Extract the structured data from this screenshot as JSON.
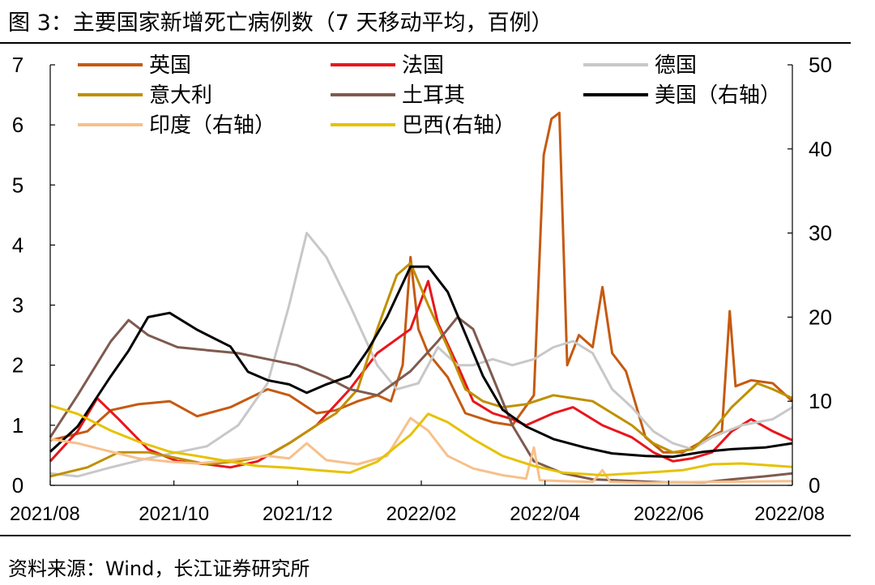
{
  "figure": {
    "title": "图 3：主要国家新增死亡病例数（7 天移动平均，百例）",
    "source": "资料来源：Wind，长江证券研究所"
  },
  "chart_data": {
    "type": "line",
    "x_ticks": [
      "2021/08",
      "2021/10",
      "2021/12",
      "2022/02",
      "2022/04",
      "2022/06",
      "2022/08"
    ],
    "x_range": [
      "2021-08-01",
      "2022-08-15"
    ],
    "y_left": {
      "range": [
        0,
        7
      ],
      "ticks": [
        0,
        1,
        2,
        3,
        4,
        5,
        6,
        7
      ]
    },
    "y_right": {
      "range": [
        0,
        50
      ],
      "ticks": [
        0,
        10,
        20,
        30,
        40,
        50
      ]
    },
    "legend_position": "top",
    "series": [
      {
        "name": "英国",
        "axis": "left",
        "color": "#C55A11",
        "width": 3,
        "points": [
          [
            "2021-08-01",
            0.75
          ],
          [
            "2021-08-20",
            0.9
          ],
          [
            "2021-09-01",
            1.25
          ],
          [
            "2021-09-15",
            1.35
          ],
          [
            "2021-10-01",
            1.4
          ],
          [
            "2021-10-15",
            1.15
          ],
          [
            "2021-11-01",
            1.3
          ],
          [
            "2021-11-20",
            1.6
          ],
          [
            "2021-12-01",
            1.5
          ],
          [
            "2021-12-15",
            1.2
          ],
          [
            "2021-12-25",
            1.25
          ],
          [
            "2022-01-05",
            1.4
          ],
          [
            "2022-01-15",
            1.5
          ],
          [
            "2022-01-22",
            1.4
          ],
          [
            "2022-01-28",
            2.0
          ],
          [
            "2022-02-01",
            3.8
          ],
          [
            "2022-02-05",
            2.6
          ],
          [
            "2022-02-10",
            2.2
          ],
          [
            "2022-02-20",
            1.8
          ],
          [
            "2022-03-01",
            1.2
          ],
          [
            "2022-03-15",
            1.05
          ],
          [
            "2022-03-25",
            1.0
          ],
          [
            "2022-04-05",
            1.5
          ],
          [
            "2022-04-10",
            5.5
          ],
          [
            "2022-04-14",
            6.1
          ],
          [
            "2022-04-18",
            6.2
          ],
          [
            "2022-04-22",
            2.0
          ],
          [
            "2022-04-28",
            2.5
          ],
          [
            "2022-05-05",
            2.3
          ],
          [
            "2022-05-10",
            3.3
          ],
          [
            "2022-05-15",
            2.2
          ],
          [
            "2022-05-22",
            1.9
          ],
          [
            "2022-06-01",
            0.8
          ],
          [
            "2022-06-10",
            0.55
          ],
          [
            "2022-06-20",
            0.55
          ],
          [
            "2022-07-01",
            0.75
          ],
          [
            "2022-07-10",
            0.9
          ],
          [
            "2022-07-14",
            2.9
          ],
          [
            "2022-07-17",
            1.65
          ],
          [
            "2022-07-25",
            1.75
          ],
          [
            "2022-08-05",
            1.7
          ],
          [
            "2022-08-15",
            1.4
          ]
        ]
      },
      {
        "name": "法国",
        "axis": "left",
        "color": "#E8161C",
        "width": 3,
        "points": [
          [
            "2021-08-01",
            0.4
          ],
          [
            "2021-08-15",
            0.9
          ],
          [
            "2021-08-25",
            1.45
          ],
          [
            "2021-09-05",
            1.1
          ],
          [
            "2021-09-20",
            0.6
          ],
          [
            "2021-10-05",
            0.4
          ],
          [
            "2021-10-20",
            0.35
          ],
          [
            "2021-11-01",
            0.3
          ],
          [
            "2021-11-15",
            0.4
          ],
          [
            "2021-12-01",
            0.7
          ],
          [
            "2021-12-15",
            1.0
          ],
          [
            "2022-01-01",
            1.6
          ],
          [
            "2022-01-15",
            2.2
          ],
          [
            "2022-02-01",
            2.6
          ],
          [
            "2022-02-10",
            3.4
          ],
          [
            "2022-02-15",
            2.7
          ],
          [
            "2022-02-25",
            2.0
          ],
          [
            "2022-03-05",
            1.4
          ],
          [
            "2022-03-15",
            1.2
          ],
          [
            "2022-03-25",
            1.1
          ],
          [
            "2022-04-01",
            1.0
          ],
          [
            "2022-04-15",
            1.2
          ],
          [
            "2022-04-25",
            1.3
          ],
          [
            "2022-05-10",
            1.0
          ],
          [
            "2022-05-25",
            0.8
          ],
          [
            "2022-06-05",
            0.55
          ],
          [
            "2022-06-15",
            0.4
          ],
          [
            "2022-06-25",
            0.45
          ],
          [
            "2022-07-05",
            0.55
          ],
          [
            "2022-07-15",
            0.9
          ],
          [
            "2022-07-25",
            1.1
          ],
          [
            "2022-08-05",
            0.9
          ],
          [
            "2022-08-15",
            0.75
          ]
        ]
      },
      {
        "name": "德国",
        "axis": "left",
        "color": "#C8C8C8",
        "width": 3,
        "points": [
          [
            "2021-08-01",
            0.2
          ],
          [
            "2021-08-15",
            0.15
          ],
          [
            "2021-09-01",
            0.3
          ],
          [
            "2021-09-20",
            0.45
          ],
          [
            "2021-10-05",
            0.55
          ],
          [
            "2021-10-20",
            0.65
          ],
          [
            "2021-11-05",
            1.0
          ],
          [
            "2021-11-20",
            1.7
          ],
          [
            "2021-12-01",
            3.0
          ],
          [
            "2021-12-10",
            4.2
          ],
          [
            "2021-12-20",
            3.8
          ],
          [
            "2022-01-01",
            3.0
          ],
          [
            "2022-01-15",
            2.0
          ],
          [
            "2022-01-25",
            1.6
          ],
          [
            "2022-02-05",
            1.7
          ],
          [
            "2022-02-15",
            2.3
          ],
          [
            "2022-02-25",
            2.0
          ],
          [
            "2022-03-05",
            2.0
          ],
          [
            "2022-03-15",
            2.1
          ],
          [
            "2022-03-25",
            2.0
          ],
          [
            "2022-04-05",
            2.1
          ],
          [
            "2022-04-15",
            2.3
          ],
          [
            "2022-04-25",
            2.4
          ],
          [
            "2022-05-05",
            2.2
          ],
          [
            "2022-05-15",
            1.6
          ],
          [
            "2022-05-25",
            1.3
          ],
          [
            "2022-06-05",
            0.9
          ],
          [
            "2022-06-15",
            0.7
          ],
          [
            "2022-06-25",
            0.6
          ],
          [
            "2022-07-05",
            0.8
          ],
          [
            "2022-07-20",
            1.0
          ],
          [
            "2022-08-05",
            1.1
          ],
          [
            "2022-08-15",
            1.3
          ]
        ]
      },
      {
        "name": "意大利",
        "axis": "left",
        "color": "#BF9000",
        "width": 3,
        "points": [
          [
            "2021-08-01",
            0.15
          ],
          [
            "2021-08-20",
            0.3
          ],
          [
            "2021-09-05",
            0.55
          ],
          [
            "2021-09-20",
            0.55
          ],
          [
            "2021-10-05",
            0.45
          ],
          [
            "2021-10-20",
            0.35
          ],
          [
            "2021-11-05",
            0.4
          ],
          [
            "2021-11-20",
            0.5
          ],
          [
            "2021-12-01",
            0.7
          ],
          [
            "2021-12-15",
            1.0
          ],
          [
            "2021-12-25",
            1.2
          ],
          [
            "2022-01-05",
            1.6
          ],
          [
            "2022-01-15",
            2.6
          ],
          [
            "2022-01-25",
            3.5
          ],
          [
            "2022-02-01",
            3.7
          ],
          [
            "2022-02-10",
            3.0
          ],
          [
            "2022-02-20",
            2.3
          ],
          [
            "2022-03-01",
            1.6
          ],
          [
            "2022-03-10",
            1.4
          ],
          [
            "2022-03-20",
            1.3
          ],
          [
            "2022-04-01",
            1.35
          ],
          [
            "2022-04-15",
            1.5
          ],
          [
            "2022-04-25",
            1.45
          ],
          [
            "2022-05-05",
            1.4
          ],
          [
            "2022-05-15",
            1.2
          ],
          [
            "2022-05-25",
            1.0
          ],
          [
            "2022-06-05",
            0.7
          ],
          [
            "2022-06-15",
            0.55
          ],
          [
            "2022-06-25",
            0.6
          ],
          [
            "2022-07-05",
            0.9
          ],
          [
            "2022-07-15",
            1.3
          ],
          [
            "2022-07-28",
            1.7
          ],
          [
            "2022-08-05",
            1.6
          ],
          [
            "2022-08-15",
            1.45
          ]
        ]
      },
      {
        "name": "土耳其",
        "axis": "left",
        "color": "#7F5A4F",
        "width": 3,
        "points": [
          [
            "2021-08-01",
            0.8
          ],
          [
            "2021-08-15",
            1.5
          ],
          [
            "2021-09-01",
            2.4
          ],
          [
            "2021-09-10",
            2.75
          ],
          [
            "2021-09-20",
            2.5
          ],
          [
            "2021-10-05",
            2.3
          ],
          [
            "2021-10-20",
            2.25
          ],
          [
            "2021-11-05",
            2.2
          ],
          [
            "2021-11-20",
            2.1
          ],
          [
            "2021-12-05",
            2.0
          ],
          [
            "2021-12-20",
            1.8
          ],
          [
            "2022-01-01",
            1.6
          ],
          [
            "2022-01-15",
            1.5
          ],
          [
            "2022-02-01",
            1.9
          ],
          [
            "2022-02-15",
            2.4
          ],
          [
            "2022-02-25",
            2.8
          ],
          [
            "2022-03-05",
            2.6
          ],
          [
            "2022-03-15",
            1.8
          ],
          [
            "2022-03-25",
            1.0
          ],
          [
            "2022-04-05",
            0.4
          ],
          [
            "2022-04-20",
            0.2
          ],
          [
            "2022-05-05",
            0.1
          ],
          [
            "2022-05-20",
            0.08
          ],
          [
            "2022-06-10",
            0.05
          ],
          [
            "2022-07-01",
            0.05
          ],
          [
            "2022-07-15",
            0.1
          ],
          [
            "2022-08-01",
            0.15
          ],
          [
            "2022-08-15",
            0.2
          ]
        ]
      },
      {
        "name": "美国（右轴）",
        "axis": "right",
        "color": "#000000",
        "width": 3,
        "points": [
          [
            "2021-08-01",
            4
          ],
          [
            "2021-08-15",
            7
          ],
          [
            "2021-09-01",
            13
          ],
          [
            "2021-09-10",
            16
          ],
          [
            "2021-09-20",
            20
          ],
          [
            "2021-10-01",
            20.5
          ],
          [
            "2021-10-15",
            18.5
          ],
          [
            "2021-11-01",
            16.5
          ],
          [
            "2021-11-10",
            13.5
          ],
          [
            "2021-11-20",
            12.5
          ],
          [
            "2021-12-01",
            12
          ],
          [
            "2021-12-10",
            11
          ],
          [
            "2021-12-20",
            12
          ],
          [
            "2022-01-01",
            13
          ],
          [
            "2022-01-10",
            16
          ],
          [
            "2022-01-20",
            20
          ],
          [
            "2022-02-01",
            26
          ],
          [
            "2022-02-10",
            26
          ],
          [
            "2022-02-20",
            23
          ],
          [
            "2022-03-01",
            18
          ],
          [
            "2022-03-10",
            13
          ],
          [
            "2022-03-20",
            9
          ],
          [
            "2022-04-01",
            7
          ],
          [
            "2022-04-15",
            5.5
          ],
          [
            "2022-05-01",
            4.5
          ],
          [
            "2022-05-15",
            3.8
          ],
          [
            "2022-06-01",
            3.5
          ],
          [
            "2022-06-15",
            3.4
          ],
          [
            "2022-07-01",
            4
          ],
          [
            "2022-07-15",
            4.3
          ],
          [
            "2022-08-01",
            4.5
          ],
          [
            "2022-08-15",
            5
          ]
        ]
      },
      {
        "name": "印度（右轴）",
        "axis": "right",
        "color": "#F8C08A",
        "width": 3,
        "points": [
          [
            "2021-08-01",
            5.5
          ],
          [
            "2021-08-15",
            5.0
          ],
          [
            "2021-09-01",
            4.0
          ],
          [
            "2021-09-15",
            3.2
          ],
          [
            "2021-10-01",
            2.8
          ],
          [
            "2021-10-15",
            2.6
          ],
          [
            "2021-11-01",
            3.0
          ],
          [
            "2021-11-20",
            3.5
          ],
          [
            "2021-12-01",
            3.2
          ],
          [
            "2021-12-10",
            5.0
          ],
          [
            "2021-12-20",
            3.0
          ],
          [
            "2022-01-05",
            2.5
          ],
          [
            "2022-01-20",
            3.5
          ],
          [
            "2022-02-01",
            8.0
          ],
          [
            "2022-02-10",
            6.5
          ],
          [
            "2022-02-20",
            3.5
          ],
          [
            "2022-03-05",
            2.0
          ],
          [
            "2022-03-20",
            1.2
          ],
          [
            "2022-04-01",
            0.8
          ],
          [
            "2022-04-05",
            4.5
          ],
          [
            "2022-04-08",
            0.6
          ],
          [
            "2022-04-20",
            0.5
          ],
          [
            "2022-05-05",
            0.4
          ],
          [
            "2022-05-10",
            1.8
          ],
          [
            "2022-05-14",
            0.4
          ],
          [
            "2022-06-01",
            0.3
          ],
          [
            "2022-07-01",
            0.4
          ],
          [
            "2022-08-15",
            0.5
          ]
        ]
      },
      {
        "name": "巴西(右轴）",
        "axis": "right",
        "color": "#E6C200",
        "width": 3,
        "points": [
          [
            "2021-08-01",
            9.5
          ],
          [
            "2021-08-15",
            8.5
          ],
          [
            "2021-09-01",
            6.5
          ],
          [
            "2021-09-15",
            5.2
          ],
          [
            "2021-10-01",
            4.0
          ],
          [
            "2021-10-15",
            3.5
          ],
          [
            "2021-11-01",
            2.8
          ],
          [
            "2021-11-15",
            2.3
          ],
          [
            "2021-12-01",
            2.1
          ],
          [
            "2021-12-15",
            1.8
          ],
          [
            "2022-01-01",
            1.5
          ],
          [
            "2022-01-15",
            2.8
          ],
          [
            "2022-02-01",
            6.0
          ],
          [
            "2022-02-10",
            8.5
          ],
          [
            "2022-02-20",
            7.5
          ],
          [
            "2022-03-05",
            5.5
          ],
          [
            "2022-03-20",
            3.5
          ],
          [
            "2022-04-05",
            2.3
          ],
          [
            "2022-04-20",
            1.5
          ],
          [
            "2022-05-10",
            1.2
          ],
          [
            "2022-06-01",
            1.5
          ],
          [
            "2022-06-20",
            1.8
          ],
          [
            "2022-07-05",
            2.5
          ],
          [
            "2022-07-20",
            2.6
          ],
          [
            "2022-08-15",
            2.2
          ]
        ]
      }
    ]
  }
}
